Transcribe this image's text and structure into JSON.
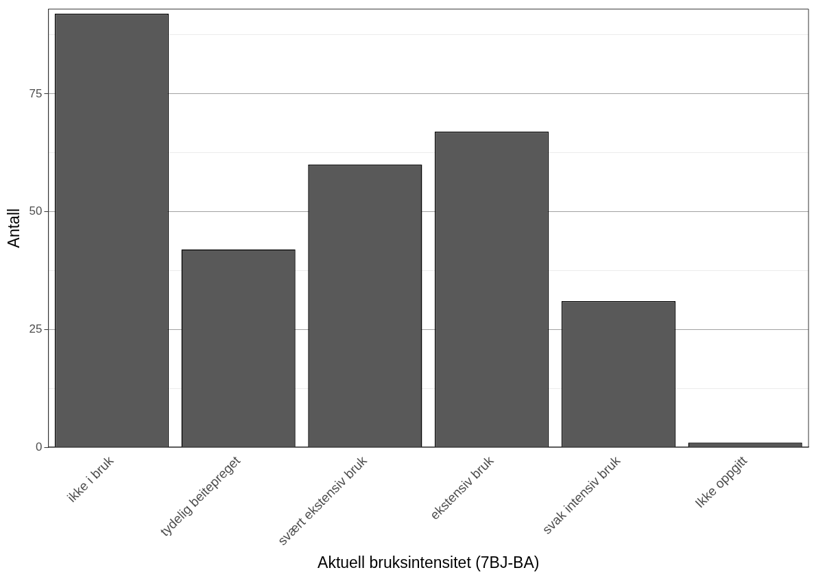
{
  "chart_data": {
    "type": "bar",
    "xlabel": "Aktuell bruksintensitet (7BJ-BA)",
    "ylabel": "Antall",
    "categories": [
      "ikke i bruk",
      "tydelig beitepreget",
      "svært ekstensiv bruk",
      "ekstensiv bruk",
      "svak intensiv bruk",
      "Ikke oppgitt"
    ],
    "values": [
      92,
      42,
      60,
      67,
      31,
      1
    ],
    "color": "#595959",
    "ylim": [
      0,
      93
    ],
    "yticks": [
      0,
      {
        "value": 12.5,
        "label": null
      },
      25,
      {
        "value": 37.5,
        "label": null
      },
      50,
      {
        "value": 62.5,
        "label": null
      },
      75,
      {
        "value": 87.5,
        "label": null
      }
    ],
    "grid": "y",
    "legend": false
  }
}
